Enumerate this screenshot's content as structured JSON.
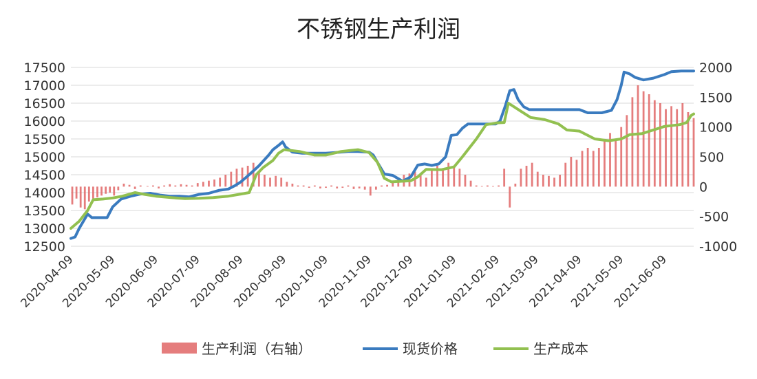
{
  "chart_data": {
    "type": "line",
    "title": "不锈钢生产利润",
    "left_axis": {
      "ticks": [
        17500,
        17000,
        16500,
        16000,
        15500,
        15000,
        14500,
        14000,
        13500,
        13000,
        12500
      ],
      "min": 12500,
      "max": 17500
    },
    "right_axis": {
      "ticks": [
        2000,
        1500,
        1000,
        500,
        0,
        -500,
        -1000
      ],
      "min": -1000,
      "max": 2000
    },
    "x_ticks": [
      "2020-04-09",
      "2020-05-09",
      "2020-06-09",
      "2020-07-09",
      "2020-08-09",
      "2020-09-09",
      "2020-10-09",
      "2020-11-09",
      "2020-12-09",
      "2021-01-09",
      "2021-02-09",
      "2021-03-09",
      "2021-04-09",
      "2021-05-09",
      "2021-06-09"
    ],
    "x_range": [
      "2020-04-09",
      "2021-06-30"
    ],
    "grid": true,
    "legend_position": "bottom",
    "series": [
      {
        "name": "现货价格",
        "axis": "left",
        "kind": "line",
        "color": "#3a7bbf",
        "points": [
          [
            "2020-04-09",
            12720
          ],
          [
            "2020-04-12",
            12760
          ],
          [
            "2020-04-15",
            13000
          ],
          [
            "2020-04-18",
            13200
          ],
          [
            "2020-04-21",
            13400
          ],
          [
            "2020-04-24",
            13300
          ],
          [
            "2020-04-30",
            13300
          ],
          [
            "2020-05-05",
            13300
          ],
          [
            "2020-05-09",
            13600
          ],
          [
            "2020-05-15",
            13820
          ],
          [
            "2020-05-22",
            13900
          ],
          [
            "2020-05-29",
            13960
          ],
          [
            "2020-06-05",
            13980
          ],
          [
            "2020-06-12",
            13930
          ],
          [
            "2020-06-19",
            13900
          ],
          [
            "2020-06-26",
            13900
          ],
          [
            "2020-07-03",
            13880
          ],
          [
            "2020-07-10",
            13950
          ],
          [
            "2020-07-17",
            13980
          ],
          [
            "2020-07-24",
            14060
          ],
          [
            "2020-07-31",
            14100
          ],
          [
            "2020-08-05",
            14200
          ],
          [
            "2020-08-09",
            14300
          ],
          [
            "2020-08-15",
            14500
          ],
          [
            "2020-08-22",
            14750
          ],
          [
            "2020-08-29",
            15050
          ],
          [
            "2020-09-01",
            15200
          ],
          [
            "2020-09-05",
            15320
          ],
          [
            "2020-09-08",
            15420
          ],
          [
            "2020-09-10",
            15280
          ],
          [
            "2020-09-15",
            15130
          ],
          [
            "2020-09-22",
            15100
          ],
          [
            "2020-10-01",
            15100
          ],
          [
            "2020-10-09",
            15100
          ],
          [
            "2020-10-16",
            15120
          ],
          [
            "2020-10-25",
            15150
          ],
          [
            "2020-11-01",
            15150
          ],
          [
            "2020-11-09",
            15130
          ],
          [
            "2020-11-12",
            15050
          ],
          [
            "2020-11-16",
            14780
          ],
          [
            "2020-11-20",
            14520
          ],
          [
            "2020-11-26",
            14480
          ],
          [
            "2020-12-03",
            14320
          ],
          [
            "2020-12-09",
            14440
          ],
          [
            "2020-12-14",
            14770
          ],
          [
            "2020-12-19",
            14800
          ],
          [
            "2020-12-24",
            14760
          ],
          [
            "2020-12-29",
            14800
          ],
          [
            "2021-01-03",
            15000
          ],
          [
            "2021-01-07",
            15600
          ],
          [
            "2021-01-11",
            15620
          ],
          [
            "2021-01-15",
            15800
          ],
          [
            "2021-01-19",
            15920
          ],
          [
            "2021-01-25",
            15920
          ],
          [
            "2021-02-01",
            15920
          ],
          [
            "2021-02-08",
            15920
          ],
          [
            "2021-02-11",
            16000
          ],
          [
            "2021-02-15",
            16450
          ],
          [
            "2021-02-18",
            16850
          ],
          [
            "2021-02-21",
            16880
          ],
          [
            "2021-02-24",
            16600
          ],
          [
            "2021-02-28",
            16400
          ],
          [
            "2021-03-04",
            16320
          ],
          [
            "2021-03-09",
            16320
          ],
          [
            "2021-03-20",
            16320
          ],
          [
            "2021-03-31",
            16320
          ],
          [
            "2021-04-09",
            16320
          ],
          [
            "2021-04-15",
            16230
          ],
          [
            "2021-04-25",
            16230
          ],
          [
            "2021-05-02",
            16300
          ],
          [
            "2021-05-06",
            16600
          ],
          [
            "2021-05-09",
            17000
          ],
          [
            "2021-05-11",
            17370
          ],
          [
            "2021-05-15",
            17320
          ],
          [
            "2021-05-19",
            17220
          ],
          [
            "2021-05-25",
            17150
          ],
          [
            "2021-06-01",
            17200
          ],
          [
            "2021-06-09",
            17300
          ],
          [
            "2021-06-14",
            17380
          ],
          [
            "2021-06-21",
            17400
          ],
          [
            "2021-06-30",
            17400
          ]
        ]
      },
      {
        "name": "生产成本",
        "axis": "left",
        "kind": "line",
        "color": "#92c050",
        "points": [
          [
            "2020-04-09",
            13000
          ],
          [
            "2020-04-15",
            13200
          ],
          [
            "2020-04-21",
            13500
          ],
          [
            "2020-04-25",
            13800
          ],
          [
            "2020-05-02",
            13820
          ],
          [
            "2020-05-09",
            13850
          ],
          [
            "2020-05-16",
            13900
          ],
          [
            "2020-05-25",
            14000
          ],
          [
            "2020-06-01",
            13950
          ],
          [
            "2020-06-09",
            13900
          ],
          [
            "2020-06-20",
            13860
          ],
          [
            "2020-06-30",
            13830
          ],
          [
            "2020-07-10",
            13840
          ],
          [
            "2020-07-20",
            13860
          ],
          [
            "2020-07-31",
            13900
          ],
          [
            "2020-08-09",
            13960
          ],
          [
            "2020-08-15",
            14000
          ],
          [
            "2020-08-20",
            14500
          ],
          [
            "2020-08-25",
            14700
          ],
          [
            "2020-09-01",
            14900
          ],
          [
            "2020-09-05",
            15100
          ],
          [
            "2020-09-09",
            15200
          ],
          [
            "2020-09-20",
            15150
          ],
          [
            "2020-10-01",
            15050
          ],
          [
            "2020-10-09",
            15050
          ],
          [
            "2020-10-20",
            15150
          ],
          [
            "2020-11-01",
            15200
          ],
          [
            "2020-11-09",
            15120
          ],
          [
            "2020-11-15",
            14850
          ],
          [
            "2020-11-20",
            14400
          ],
          [
            "2020-11-25",
            14300
          ],
          [
            "2020-12-09",
            14330
          ],
          [
            "2020-12-14",
            14440
          ],
          [
            "2020-12-20",
            14650
          ],
          [
            "2020-12-31",
            14640
          ],
          [
            "2021-01-09",
            14720
          ],
          [
            "2021-01-15",
            15000
          ],
          [
            "2021-01-25",
            15500
          ],
          [
            "2021-02-01",
            15900
          ],
          [
            "2021-02-09",
            15950
          ],
          [
            "2021-02-14",
            15960
          ],
          [
            "2021-02-17",
            16500
          ],
          [
            "2021-02-21",
            16400
          ],
          [
            "2021-02-25",
            16300
          ],
          [
            "2021-03-05",
            16100
          ],
          [
            "2021-03-15",
            16040
          ],
          [
            "2021-03-25",
            15920
          ],
          [
            "2021-03-31",
            15750
          ],
          [
            "2021-04-09",
            15720
          ],
          [
            "2021-04-20",
            15500
          ],
          [
            "2021-04-30",
            15450
          ],
          [
            "2021-05-09",
            15500
          ],
          [
            "2021-05-15",
            15620
          ],
          [
            "2021-05-24",
            15650
          ],
          [
            "2021-06-01",
            15750
          ],
          [
            "2021-06-09",
            15850
          ],
          [
            "2021-06-20",
            15900
          ],
          [
            "2021-06-25",
            15960
          ],
          [
            "2021-06-28",
            16150
          ],
          [
            "2021-06-30",
            16200
          ]
        ]
      },
      {
        "name": "生产利润（右轴）",
        "axis": "right",
        "kind": "bar",
        "color": "#e06666",
        "points": [
          [
            "2020-04-10",
            -300
          ],
          [
            "2020-04-13",
            -200
          ],
          [
            "2020-04-16",
            -350
          ],
          [
            "2020-04-19",
            -380
          ],
          [
            "2020-04-22",
            -250
          ],
          [
            "2020-04-25",
            -200
          ],
          [
            "2020-04-28",
            -180
          ],
          [
            "2020-05-01",
            -150
          ],
          [
            "2020-05-04",
            -120
          ],
          [
            "2020-05-07",
            -100
          ],
          [
            "2020-05-10",
            -150
          ],
          [
            "2020-05-13",
            -60
          ],
          [
            "2020-05-17",
            50
          ],
          [
            "2020-05-21",
            30
          ],
          [
            "2020-05-25",
            -40
          ],
          [
            "2020-05-29",
            20
          ],
          [
            "2020-06-03",
            10
          ],
          [
            "2020-06-07",
            20
          ],
          [
            "2020-06-11",
            -30
          ],
          [
            "2020-06-15",
            20
          ],
          [
            "2020-06-19",
            40
          ],
          [
            "2020-06-23",
            20
          ],
          [
            "2020-06-27",
            40
          ],
          [
            "2020-07-01",
            30
          ],
          [
            "2020-07-05",
            20
          ],
          [
            "2020-07-09",
            60
          ],
          [
            "2020-07-13",
            80
          ],
          [
            "2020-07-17",
            100
          ],
          [
            "2020-07-21",
            120
          ],
          [
            "2020-07-25",
            150
          ],
          [
            "2020-07-29",
            200
          ],
          [
            "2020-08-02",
            250
          ],
          [
            "2020-08-06",
            300
          ],
          [
            "2020-08-10",
            320
          ],
          [
            "2020-08-14",
            350
          ],
          [
            "2020-08-18",
            400
          ],
          [
            "2020-08-22",
            250
          ],
          [
            "2020-08-26",
            200
          ],
          [
            "2020-08-30",
            150
          ],
          [
            "2020-09-03",
            180
          ],
          [
            "2020-09-07",
            150
          ],
          [
            "2020-09-11",
            80
          ],
          [
            "2020-09-15",
            50
          ],
          [
            "2020-09-19",
            20
          ],
          [
            "2020-09-23",
            20
          ],
          [
            "2020-09-27",
            -20
          ],
          [
            "2020-10-01",
            20
          ],
          [
            "2020-10-05",
            -30
          ],
          [
            "2020-10-09",
            -20
          ],
          [
            "2020-10-13",
            20
          ],
          [
            "2020-10-17",
            -30
          ],
          [
            "2020-10-21",
            -20
          ],
          [
            "2020-10-25",
            20
          ],
          [
            "2020-10-29",
            -40
          ],
          [
            "2020-11-02",
            -30
          ],
          [
            "2020-11-06",
            -50
          ],
          [
            "2020-11-10",
            -150
          ],
          [
            "2020-11-14",
            -50
          ],
          [
            "2020-11-18",
            20
          ],
          [
            "2020-11-22",
            30
          ],
          [
            "2020-11-26",
            80
          ],
          [
            "2020-11-30",
            150
          ],
          [
            "2020-12-04",
            200
          ],
          [
            "2020-12-08",
            220
          ],
          [
            "2020-12-12",
            250
          ],
          [
            "2020-12-16",
            200
          ],
          [
            "2020-12-20",
            150
          ],
          [
            "2020-12-24",
            300
          ],
          [
            "2020-12-28",
            350
          ],
          [
            "2021-01-01",
            300
          ],
          [
            "2021-01-05",
            400
          ],
          [
            "2021-01-09",
            350
          ],
          [
            "2021-01-13",
            300
          ],
          [
            "2021-01-17",
            200
          ],
          [
            "2021-01-21",
            100
          ],
          [
            "2021-01-25",
            20
          ],
          [
            "2021-01-29",
            10
          ],
          [
            "2021-02-02",
            20
          ],
          [
            "2021-02-06",
            10
          ],
          [
            "2021-02-10",
            20
          ],
          [
            "2021-02-14",
            300
          ],
          [
            "2021-02-18",
            -350
          ],
          [
            "2021-02-22",
            50
          ],
          [
            "2021-02-26",
            300
          ],
          [
            "2021-03-02",
            350
          ],
          [
            "2021-03-06",
            400
          ],
          [
            "2021-03-10",
            250
          ],
          [
            "2021-03-14",
            200
          ],
          [
            "2021-03-18",
            180
          ],
          [
            "2021-03-22",
            150
          ],
          [
            "2021-03-26",
            200
          ],
          [
            "2021-03-30",
            400
          ],
          [
            "2021-04-03",
            500
          ],
          [
            "2021-04-07",
            450
          ],
          [
            "2021-04-11",
            600
          ],
          [
            "2021-04-15",
            650
          ],
          [
            "2021-04-19",
            600
          ],
          [
            "2021-04-23",
            650
          ],
          [
            "2021-04-27",
            800
          ],
          [
            "2021-05-01",
            900
          ],
          [
            "2021-05-05",
            800
          ],
          [
            "2021-05-09",
            1000
          ],
          [
            "2021-05-13",
            1200
          ],
          [
            "2021-05-17",
            1500
          ],
          [
            "2021-05-21",
            1700
          ],
          [
            "2021-05-25",
            1600
          ],
          [
            "2021-05-29",
            1550
          ],
          [
            "2021-06-02",
            1450
          ],
          [
            "2021-06-06",
            1400
          ],
          [
            "2021-06-10",
            1300
          ],
          [
            "2021-06-14",
            1350
          ],
          [
            "2021-06-18",
            1300
          ],
          [
            "2021-06-22",
            1400
          ],
          [
            "2021-06-26",
            1250
          ],
          [
            "2021-06-30",
            1150
          ]
        ]
      }
    ]
  }
}
